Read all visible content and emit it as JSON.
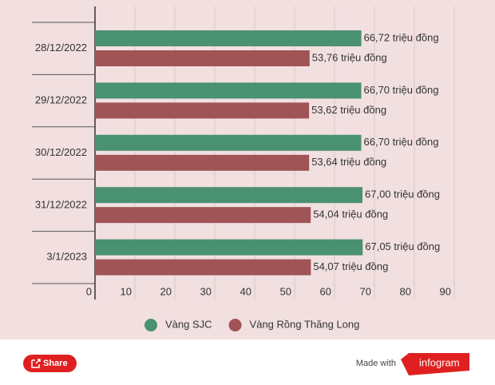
{
  "chart_data": {
    "type": "hbar",
    "categories": [
      "28/12/2022",
      "29/12/2022",
      "30/12/2022",
      "31/12/2022",
      "3/1/2023"
    ],
    "series": [
      {
        "name": "Vàng SJC",
        "color": "#4a9172",
        "values": [
          66.72,
          66.7,
          66.7,
          67.0,
          67.05
        ],
        "value_labels": [
          "66,72 triệu đồng",
          "66,70 triệu đồng",
          "66,70 triệu đồng",
          "67,00 triệu đồng",
          "67,05 triệu đồng"
        ]
      },
      {
        "name": "Vàng Rồng Thăng Long",
        "color": "#a05456",
        "values": [
          53.76,
          53.62,
          53.64,
          54.04,
          54.07
        ],
        "value_labels": [
          "53,76 triệu đồng",
          "53,62 triệu đồng",
          "53,64 triệu đồng",
          "54,04 triệu đồng",
          "54,07 triệu đồng"
        ]
      }
    ],
    "xlim": [
      0,
      90
    ],
    "xticks": [
      0,
      10,
      20,
      30,
      40,
      50,
      60,
      70,
      80,
      90
    ],
    "grid": true,
    "legend": "bottom"
  },
  "footer": {
    "share": "Share",
    "made_with": "Made with",
    "brand": "infogram"
  }
}
